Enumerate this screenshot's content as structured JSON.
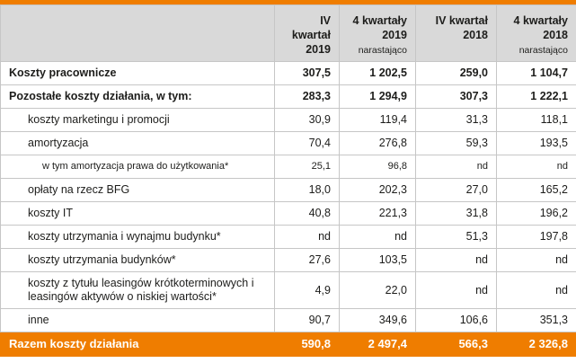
{
  "theme": {
    "accent": "#ef7d00",
    "header_bg": "#d9d9d9",
    "grid": "#c6c6c6",
    "text": "#1d1d1b",
    "footer_text": "#ffffff"
  },
  "table": {
    "columns": [
      {
        "lines": [
          "IV kwartał",
          "2019"
        ],
        "sub": ""
      },
      {
        "lines": [
          "4 kwartały",
          "2019"
        ],
        "sub": "narastająco"
      },
      {
        "lines": [
          "IV kwartał",
          "2018"
        ],
        "sub": ""
      },
      {
        "lines": [
          "4 kwartały",
          "2018"
        ],
        "sub": "narastająco"
      }
    ],
    "rows": [
      {
        "label": "Koszty pracownicze",
        "bold": true,
        "indent": 0,
        "small": false,
        "values": [
          "307,5",
          "1 202,5",
          "259,0",
          "1 104,7"
        ]
      },
      {
        "label": "Pozostałe koszty działania, w tym:",
        "bold": true,
        "indent": 0,
        "small": false,
        "values": [
          "283,3",
          "1 294,9",
          "307,3",
          "1 222,1"
        ]
      },
      {
        "label": "koszty marketingu i promocji",
        "bold": false,
        "indent": 1,
        "small": false,
        "values": [
          "30,9",
          "119,4",
          "31,3",
          "118,1"
        ]
      },
      {
        "label": "amortyzacja",
        "bold": false,
        "indent": 1,
        "small": false,
        "values": [
          "70,4",
          "276,8",
          "59,3",
          "193,5"
        ]
      },
      {
        "label": "w tym amortyzacja prawa do użytkowania*",
        "bold": false,
        "indent": 2,
        "small": true,
        "values": [
          "25,1",
          "96,8",
          "nd",
          "nd"
        ]
      },
      {
        "label": "opłaty na rzecz BFG",
        "bold": false,
        "indent": 1,
        "small": false,
        "values": [
          "18,0",
          "202,3",
          "27,0",
          "165,2"
        ]
      },
      {
        "label": "koszty IT",
        "bold": false,
        "indent": 1,
        "small": false,
        "values": [
          "40,8",
          "221,3",
          "31,8",
          "196,2"
        ]
      },
      {
        "label": "koszty utrzymania i wynajmu budynku*",
        "bold": false,
        "indent": 1,
        "small": false,
        "values": [
          "nd",
          "nd",
          "51,3",
          "197,8"
        ]
      },
      {
        "label": "koszty utrzymania budynków*",
        "bold": false,
        "indent": 1,
        "small": false,
        "values": [
          "27,6",
          "103,5",
          "nd",
          "nd"
        ]
      },
      {
        "label": "koszty z tytułu leasingów krótkoterminowych i leasingów  aktywów o niskiej wartości*",
        "bold": false,
        "indent": 1,
        "small": false,
        "values": [
          "4,9",
          "22,0",
          "nd",
          "nd"
        ]
      },
      {
        "label": "inne",
        "bold": false,
        "indent": 1,
        "small": false,
        "values": [
          "90,7",
          "349,6",
          "106,6",
          "351,3"
        ]
      }
    ],
    "footer": {
      "label": "Razem koszty działania",
      "values": [
        "590,8",
        "2 497,4",
        "566,3",
        "2 326,8"
      ]
    }
  }
}
